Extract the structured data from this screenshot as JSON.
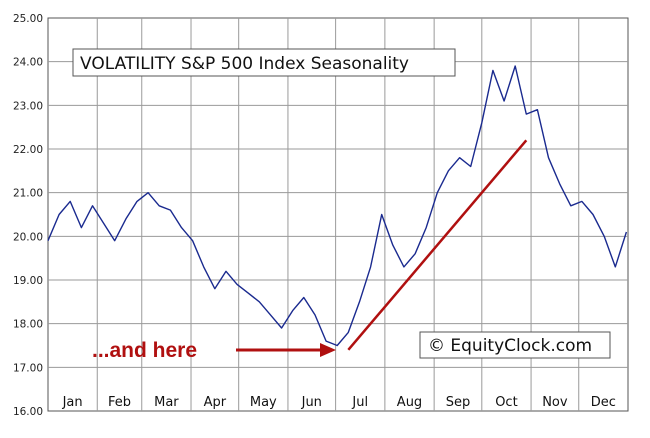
{
  "chart_data": {
    "type": "line",
    "title": "VOLATILITY S&P 500 Index Seasonality",
    "watermark": "© EquityClock.com",
    "annotation": "...and here",
    "xlabel": "",
    "ylabel": "",
    "ylim": [
      16,
      25
    ],
    "y_ticks": [
      "16.00",
      "17.00",
      "18.00",
      "19.00",
      "20.00",
      "21.00",
      "22.00",
      "23.00",
      "24.00",
      "25.00"
    ],
    "x_ticks": [
      "Jan",
      "Feb",
      "Mar",
      "Apr",
      "May",
      "Jun",
      "Jul",
      "Aug",
      "Sep",
      "Oct",
      "Nov",
      "Dec"
    ],
    "grid": true,
    "colors": {
      "line": "#1a2a8f",
      "trend": "#b01010",
      "annotation": "#b01010",
      "grid": "#9a9a9a"
    },
    "series": [
      {
        "x": [
          "Jan 1",
          "Jan 8",
          "Jan 15",
          "Jan 22",
          "Jan 29",
          "Feb 5",
          "Feb 12",
          "Feb 19",
          "Feb 26",
          "Mar 5",
          "Mar 12",
          "Mar 19",
          "Mar 26",
          "Apr 2",
          "Apr 9",
          "Apr 16",
          "Apr 23",
          "Apr 30",
          "May 7",
          "May 14",
          "May 21",
          "May 28",
          "Jun 4",
          "Jun 11",
          "Jun 18",
          "Jun 25",
          "Jul 2",
          "Jul 9",
          "Jul 16",
          "Jul 23",
          "Jul 30",
          "Aug 6",
          "Aug 13",
          "Aug 20",
          "Aug 27",
          "Sep 3",
          "Sep 10",
          "Sep 17",
          "Sep 24",
          "Oct 1",
          "Oct 8",
          "Oct 15",
          "Oct 22",
          "Oct 29",
          "Nov 5",
          "Nov 12",
          "Nov 19",
          "Nov 26",
          "Dec 3",
          "Dec 10",
          "Dec 17",
          "Dec 24",
          "Dec 31"
        ],
        "values": [
          19.9,
          20.5,
          20.8,
          20.2,
          20.7,
          20.3,
          19.9,
          20.4,
          20.8,
          21.0,
          20.7,
          20.6,
          20.2,
          19.9,
          19.3,
          18.8,
          19.2,
          18.9,
          18.7,
          18.5,
          18.2,
          17.9,
          18.3,
          18.6,
          18.2,
          17.6,
          17.5,
          17.8,
          18.5,
          19.3,
          20.5,
          19.8,
          19.3,
          19.6,
          20.2,
          21.0,
          21.5,
          21.8,
          21.6,
          22.6,
          23.8,
          23.1,
          23.9,
          22.8,
          22.9,
          21.8,
          21.2,
          20.7,
          20.8,
          20.5,
          20.0,
          19.3,
          20.1
        ]
      }
    ]
  }
}
